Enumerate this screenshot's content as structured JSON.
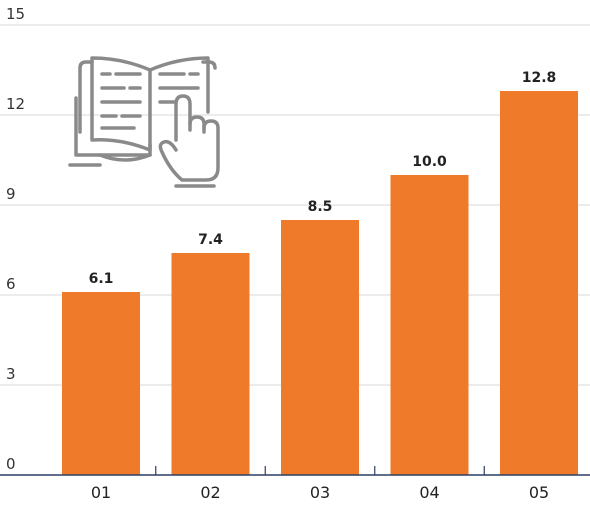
{
  "chart_data": {
    "type": "bar",
    "categories": [
      "01",
      "02",
      "03",
      "04",
      "05"
    ],
    "values": [
      6.1,
      7.4,
      8.5,
      10.0,
      12.8
    ],
    "value_labels": [
      "6.1",
      "7.4",
      "8.5",
      "10.0",
      "12.8"
    ],
    "yticks": [
      0,
      3,
      6,
      9,
      12,
      15
    ],
    "ylim": [
      0,
      15
    ],
    "grid": true,
    "title": "",
    "xlabel": "",
    "ylabel": "",
    "bar_color": "#EE7A2A",
    "grid_color": "#D9D9D9",
    "axis_color": "#2C3E63",
    "icon_color": "#8A8A8A",
    "icon": "book-reading-hand-icon"
  }
}
